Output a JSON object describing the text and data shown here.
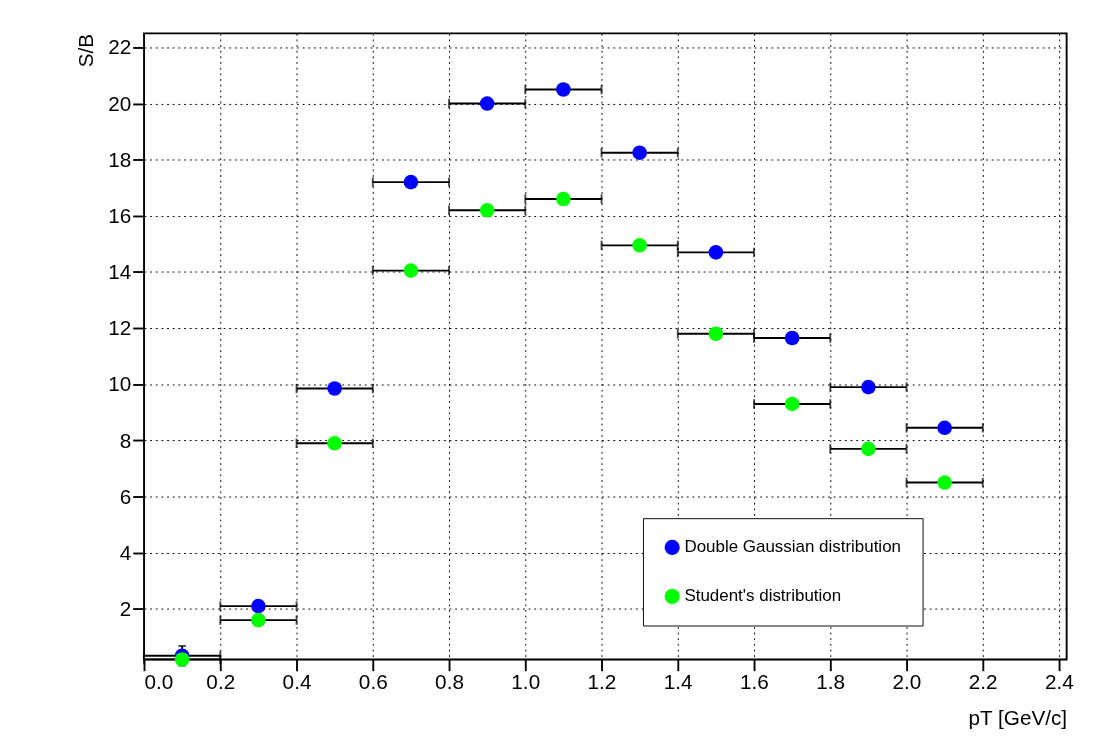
{
  "chart_data": {
    "type": "scatter",
    "xlabel": "pT [GeV/c]",
    "ylabel": "S/B",
    "x": [
      0.1,
      0.3,
      0.5,
      0.7,
      0.9,
      1.1,
      1.3,
      1.5,
      1.7,
      1.9,
      2.1
    ],
    "series": [
      {
        "name": "Double Gaussian distribution",
        "color": "#0000ff",
        "values": [
          0.33,
          2.1,
          9.85,
          17.2,
          20.0,
          20.5,
          18.25,
          14.7,
          11.65,
          9.9,
          8.45
        ],
        "xerrors": [
          0.1,
          0.1,
          0.1,
          0.1,
          0.1,
          0.1,
          0.1,
          0.1,
          0.1,
          0.1,
          0.1
        ],
        "errors": [
          0.35,
          null,
          null,
          null,
          null,
          null,
          null,
          null,
          null,
          null,
          null
        ]
      },
      {
        "name": "Student's distribution",
        "color": "#00ff00",
        "values": [
          0.2,
          1.6,
          7.9,
          14.05,
          16.2,
          16.6,
          14.95,
          11.8,
          9.3,
          7.7,
          6.5
        ],
        "xerrors": [
          0.1,
          0.1,
          0.1,
          0.1,
          0.1,
          0.1,
          0.1,
          0.1,
          0.1,
          0.1,
          0.1
        ]
      }
    ],
    "xlim": [
      0,
      2.42
    ],
    "ylim": [
      0.2,
      22.5
    ],
    "xticks": [
      {
        "value": 0,
        "label": "0.0"
      },
      0.2,
      0.4,
      0.6,
      0.8,
      {
        "value": 1,
        "label": "1.0"
      },
      1.2,
      1.4,
      1.6,
      1.8,
      {
        "value": 2,
        "label": "2.0"
      },
      2.2,
      2.4
    ],
    "yticks": [
      2,
      4,
      6,
      8,
      10,
      12,
      14,
      16,
      18,
      20,
      22
    ],
    "grid": true,
    "legend": "bottom right",
    "marker": "circle"
  }
}
